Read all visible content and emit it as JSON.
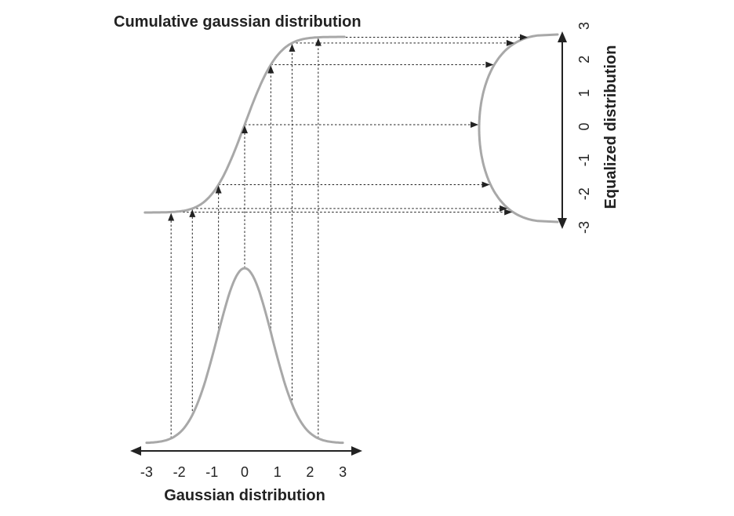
{
  "cumulative_title": "Cumulative gaussian distribution",
  "bottom_axis_label": "Gaussian distribution",
  "right_axis_label": "Equalized distribution",
  "bottom_ticks": [
    "-3",
    "-2",
    "-1",
    "0",
    "1",
    "2",
    "3"
  ],
  "right_ticks": [
    "3",
    "2",
    "1",
    "0",
    "-1",
    "-2",
    "-3"
  ],
  "sample_points": [
    -2.25,
    -1.6,
    -0.8,
    0,
    0.8,
    1.45,
    2.25
  ],
  "colors": {
    "curve": "#a8a8a8",
    "ink": "#222222"
  }
}
